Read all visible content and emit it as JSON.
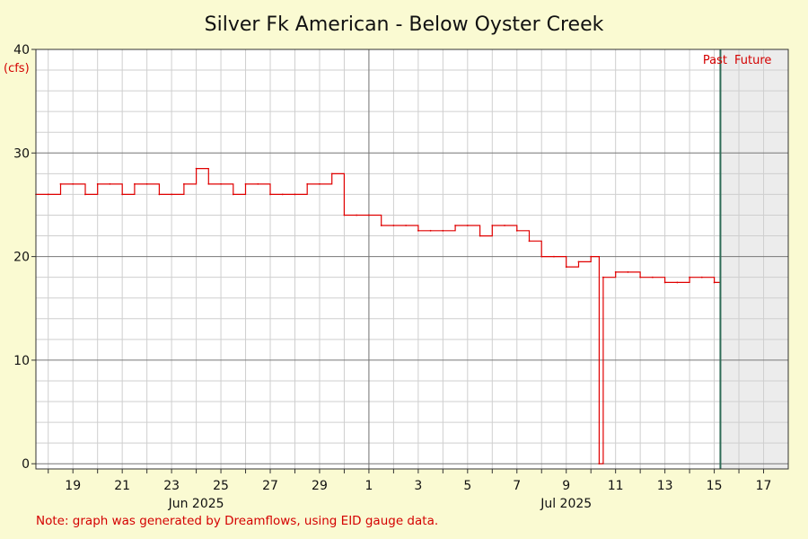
{
  "chart_data": {
    "type": "line",
    "title": "Silver Fk American - Below Oyster Creek",
    "ylabel": "(cfs)",
    "xlabel": "",
    "ylim": [
      -0.5,
      40
    ],
    "xlim": [
      "2025-06-17T12:00",
      "2025-07-18T00:00"
    ],
    "yticks": [
      0,
      10,
      20,
      30,
      40
    ],
    "xtick_labels": [
      {
        "date": "2025-06-19",
        "label": "19"
      },
      {
        "date": "2025-06-21",
        "label": "21"
      },
      {
        "date": "2025-06-23",
        "label": "23"
      },
      {
        "date": "2025-06-25",
        "label": "25"
      },
      {
        "date": "2025-06-27",
        "label": "27"
      },
      {
        "date": "2025-06-29",
        "label": "29"
      },
      {
        "date": "2025-07-01",
        "label": "1"
      },
      {
        "date": "2025-07-03",
        "label": "3"
      },
      {
        "date": "2025-07-05",
        "label": "5"
      },
      {
        "date": "2025-07-07",
        "label": "7"
      },
      {
        "date": "2025-07-09",
        "label": "9"
      },
      {
        "date": "2025-07-11",
        "label": "11"
      },
      {
        "date": "2025-07-13",
        "label": "13"
      },
      {
        "date": "2025-07-15",
        "label": "15"
      },
      {
        "date": "2025-07-17",
        "label": "17"
      }
    ],
    "month_labels": [
      {
        "date": "2025-06-24",
        "label": "Jun 2025"
      },
      {
        "date": "2025-07-09",
        "label": "Jul 2025"
      }
    ],
    "month_boundaries": [
      "2025-07-01"
    ],
    "grid": true,
    "now": "2025-07-15T06:00",
    "past_label": "Past",
    "future_label": "Future",
    "series": [
      {
        "color": "#e00000",
        "x": [
          "2025-06-17T12:00",
          "2025-06-18T00:00",
          "2025-06-18T12:00",
          "2025-06-19T00:00",
          "2025-06-19T12:00",
          "2025-06-20T00:00",
          "2025-06-20T12:00",
          "2025-06-21T00:00",
          "2025-06-21T12:00",
          "2025-06-22T00:00",
          "2025-06-22T12:00",
          "2025-06-23T00:00",
          "2025-06-23T12:00",
          "2025-06-24T00:00",
          "2025-06-24T12:00",
          "2025-06-25T00:00",
          "2025-06-25T12:00",
          "2025-06-26T00:00",
          "2025-06-26T12:00",
          "2025-06-27T00:00",
          "2025-06-27T12:00",
          "2025-06-28T00:00",
          "2025-06-28T12:00",
          "2025-06-29T00:00",
          "2025-06-29T12:00",
          "2025-06-30T00:00",
          "2025-06-30T12:00",
          "2025-07-01T00:00",
          "2025-07-01T12:00",
          "2025-07-02T00:00",
          "2025-07-02T12:00",
          "2025-07-03T00:00",
          "2025-07-03T12:00",
          "2025-07-04T00:00",
          "2025-07-04T12:00",
          "2025-07-05T00:00",
          "2025-07-05T12:00",
          "2025-07-06T00:00",
          "2025-07-06T12:00",
          "2025-07-07T00:00",
          "2025-07-07T12:00",
          "2025-07-08T00:00",
          "2025-07-08T12:00",
          "2025-07-09T00:00",
          "2025-07-09T12:00",
          "2025-07-10T00:00",
          "2025-07-10T08:00",
          "2025-07-10T12:00",
          "2025-07-11T00:00",
          "2025-07-11T12:00",
          "2025-07-12T00:00",
          "2025-07-12T12:00",
          "2025-07-13T00:00",
          "2025-07-13T12:00",
          "2025-07-14T00:00",
          "2025-07-14T12:00",
          "2025-07-15T00:00",
          "2025-07-15T06:00"
        ],
        "y": [
          26,
          26,
          27,
          27,
          26,
          27,
          27,
          26,
          27,
          27,
          26,
          26,
          27,
          28.5,
          27,
          27,
          26,
          27,
          27,
          26,
          26,
          26,
          27,
          27,
          28,
          24,
          24,
          24,
          23,
          23,
          23,
          22.5,
          22.5,
          22.5,
          23,
          23,
          22,
          23,
          23,
          22.5,
          21.5,
          20,
          20,
          19,
          19.5,
          20,
          0,
          18,
          18.5,
          18.5,
          18,
          18,
          17.5,
          17.5,
          18,
          18,
          17.5,
          16
        ]
      }
    ]
  },
  "note": "Note: graph was generated by Dreamflows, using EID gauge data."
}
